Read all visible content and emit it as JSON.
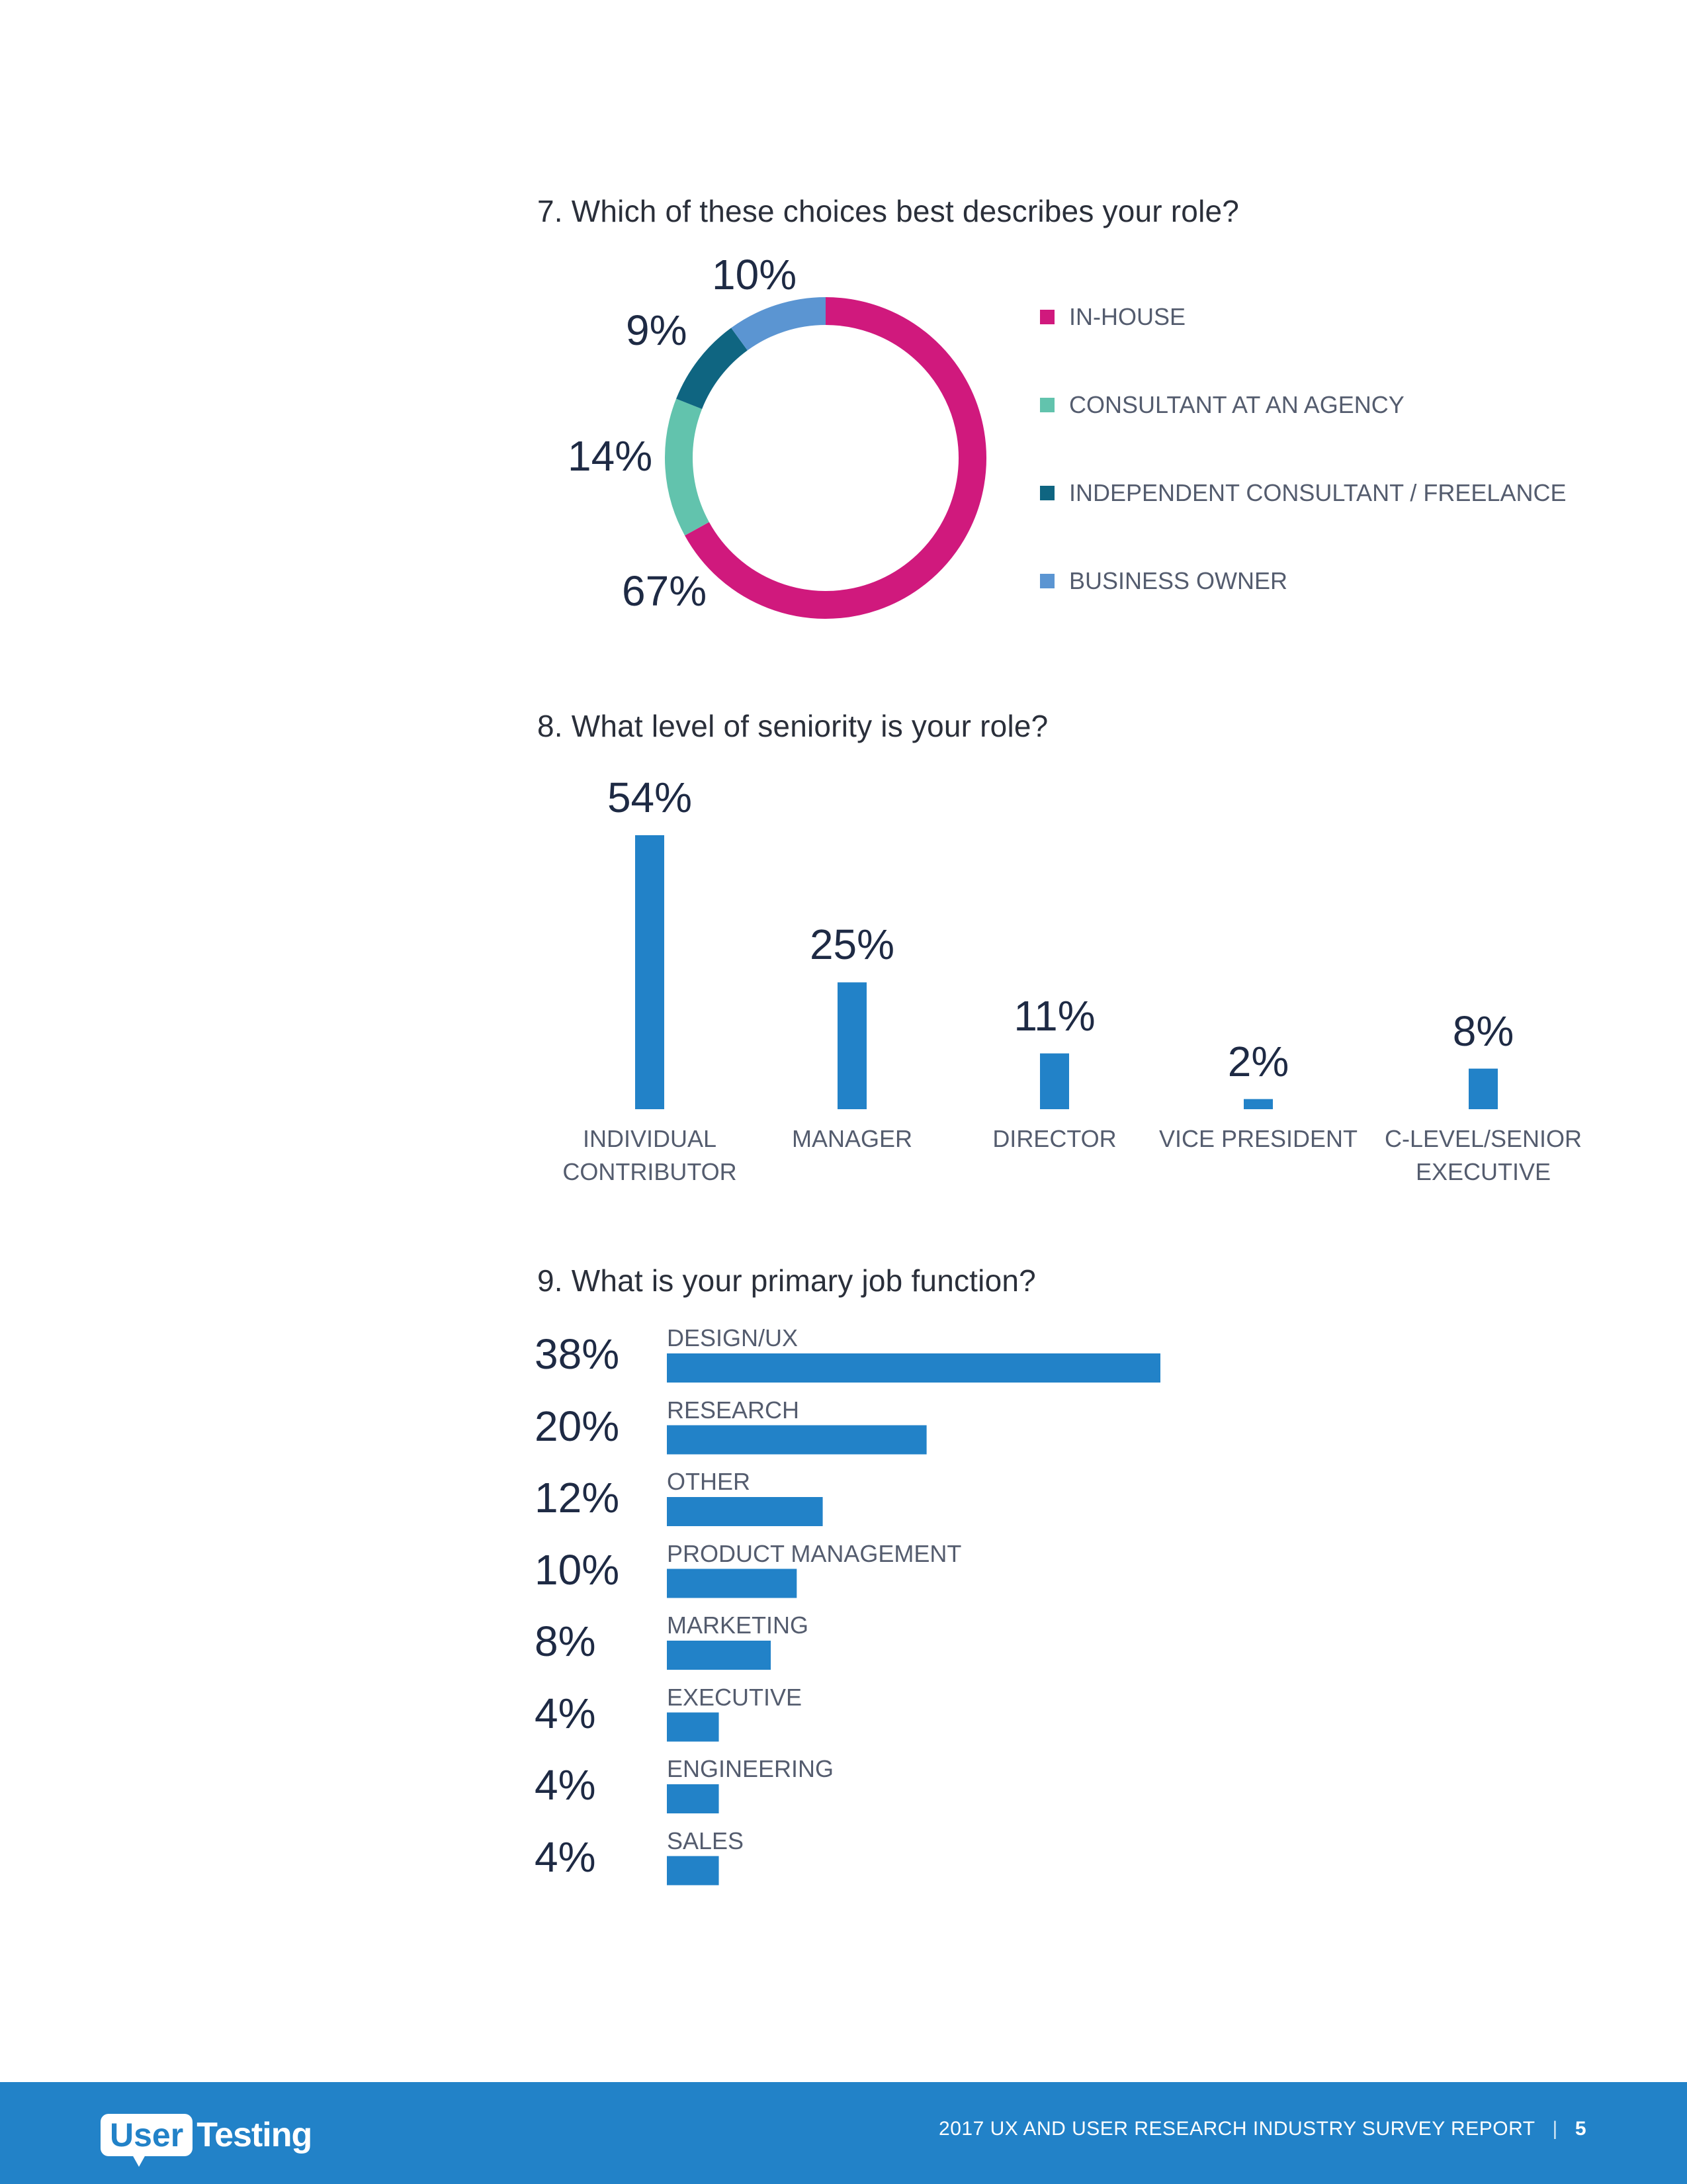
{
  "q7": {
    "title": "7. Which of these choices best describes your role?"
  },
  "q8": {
    "title": "8. What level of seniority is your role?"
  },
  "q9": {
    "title": "9. What is your primary job function?"
  },
  "chart_data": [
    {
      "type": "pie",
      "title": "7. Which of these choices best describes your role?",
      "categories": [
        "IN-HOUSE",
        "CONSULTANT AT AN AGENCY",
        "INDEPENDENT CONSULTANT / FREELANCE",
        "BUSINESS OWNER"
      ],
      "values": [
        67,
        14,
        9,
        10
      ],
      "value_labels": [
        "67%",
        "14%",
        "9%",
        "10%"
      ],
      "colors": [
        "#d0197d",
        "#62c3ad",
        "#0f6581",
        "#5b95d2"
      ],
      "legend_position": "right",
      "style": "donut"
    },
    {
      "type": "bar",
      "title": "8. What level of seniority is your role?",
      "categories": [
        "INDIVIDUAL CONTRIBUTOR",
        "MANAGER",
        "DIRECTOR",
        "VICE PRESIDENT",
        "C-LEVEL/SENIOR EXECUTIVE"
      ],
      "category_lines": [
        [
          "INDIVIDUAL",
          "CONTRIBUTOR"
        ],
        [
          "MANAGER"
        ],
        [
          "DIRECTOR"
        ],
        [
          "VICE PRESIDENT"
        ],
        [
          "C-LEVEL/SENIOR",
          "EXECUTIVE"
        ]
      ],
      "values": [
        54,
        25,
        11,
        2,
        8
      ],
      "value_labels": [
        "54%",
        "25%",
        "11%",
        "2%",
        "8%"
      ],
      "color": "#2282c8",
      "grid": false
    },
    {
      "type": "bar",
      "orientation": "horizontal",
      "title": "9. What is your primary job function?",
      "categories": [
        "DESIGN/UX",
        "RESEARCH",
        "OTHER",
        "PRODUCT MANAGEMENT",
        "MARKETING",
        "EXECUTIVE",
        "ENGINEERING",
        "SALES"
      ],
      "values": [
        38,
        20,
        12,
        10,
        8,
        4,
        4,
        4
      ],
      "value_labels": [
        "38%",
        "20%",
        "12%",
        "10%",
        "8%",
        "4%",
        "4%",
        "4%"
      ],
      "color": "#2282c8",
      "grid": false
    }
  ],
  "footer": {
    "logo_part1": "User",
    "logo_part2": "Testing",
    "report_title": "2017 UX AND USER RESEARCH INDUSTRY SURVEY REPORT",
    "separator": "|",
    "page_number": "5",
    "background": "#2282c8"
  }
}
